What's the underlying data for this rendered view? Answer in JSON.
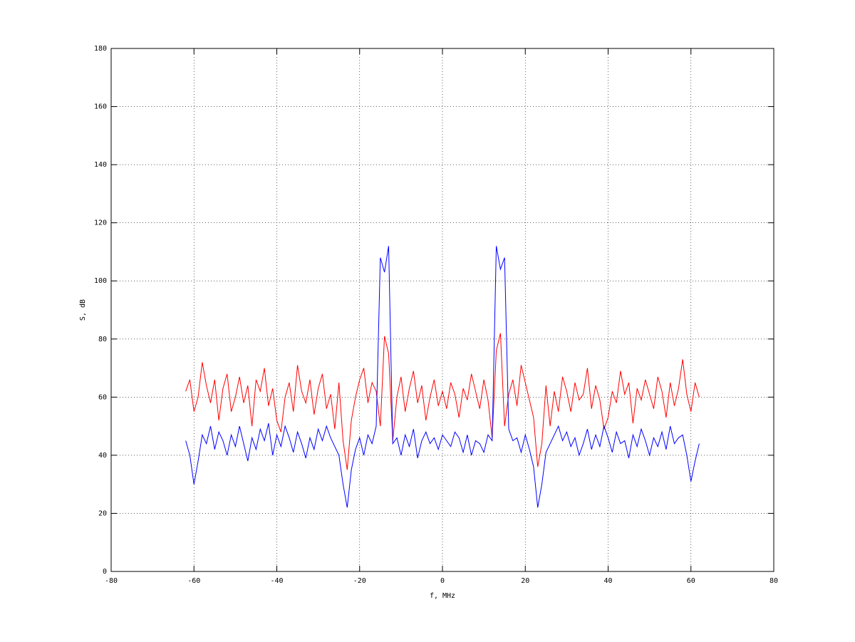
{
  "chart_data": {
    "type": "line",
    "xlabel": "f, MHz",
    "ylabel": "S, dB",
    "x": [
      -62,
      -61,
      -60,
      -59,
      -58,
      -57,
      -56,
      -55,
      -54,
      -53,
      -52,
      -51,
      -50,
      -49,
      -48,
      -47,
      -46,
      -45,
      -44,
      -43,
      -42,
      -41,
      -40,
      -39,
      -38,
      -37,
      -36,
      -35,
      -34,
      -33,
      -32,
      -31,
      -30,
      -29,
      -28,
      -27,
      -26,
      -25,
      -24,
      -23,
      -22,
      -21,
      -20,
      -19,
      -18,
      -17,
      -16,
      -15,
      -14,
      -13,
      -12,
      -11,
      -10,
      -9,
      -8,
      -7,
      -6,
      -5,
      -4,
      -3,
      -2,
      -1,
      0,
      1,
      2,
      3,
      4,
      5,
      6,
      7,
      8,
      9,
      10,
      11,
      12,
      13,
      14,
      15,
      16,
      17,
      18,
      19,
      20,
      21,
      22,
      23,
      24,
      25,
      26,
      27,
      28,
      29,
      30,
      31,
      32,
      33,
      34,
      35,
      36,
      37,
      38,
      39,
      40,
      41,
      42,
      43,
      44,
      45,
      46,
      47,
      48,
      49,
      50,
      51,
      52,
      53,
      54,
      55,
      56,
      57,
      58,
      59,
      60,
      61,
      62
    ],
    "series": [
      {
        "color": "#ff0000",
        "values": [
          62,
          66,
          55,
          60,
          72,
          64,
          58,
          66,
          52,
          63,
          68,
          55,
          60,
          67,
          58,
          64,
          50,
          66,
          62,
          70,
          57,
          63,
          52,
          48,
          60,
          65,
          55,
          71,
          62,
          58,
          66,
          54,
          63,
          68,
          56,
          61,
          49,
          65,
          45,
          35,
          52,
          60,
          66,
          70,
          58,
          65,
          62,
          50,
          81,
          75,
          45,
          60,
          67,
          55,
          63,
          69,
          58,
          64,
          52,
          60,
          66,
          57,
          62,
          56,
          65,
          61,
          53,
          63,
          59,
          68,
          62,
          56,
          66,
          59,
          46,
          76,
          82,
          50,
          61,
          66,
          57,
          71,
          65,
          59,
          53,
          36,
          44,
          64,
          50,
          62,
          55,
          67,
          62,
          55,
          65,
          59,
          61,
          70,
          56,
          64,
          59,
          49,
          53,
          62,
          58,
          69,
          61,
          65,
          51,
          63,
          59,
          66,
          61,
          56,
          67,
          62,
          53,
          65,
          57,
          63,
          73,
          61,
          55,
          65,
          60
        ]
      },
      {
        "color": "#0000ff",
        "values": [
          45,
          40,
          30,
          38,
          47,
          44,
          50,
          42,
          48,
          45,
          40,
          47,
          43,
          50,
          44,
          38,
          46,
          42,
          49,
          45,
          51,
          40,
          47,
          43,
          50,
          46,
          41,
          48,
          44,
          39,
          46,
          42,
          49,
          45,
          50,
          46,
          43,
          40,
          30,
          22,
          35,
          42,
          46,
          40,
          47,
          44,
          50,
          108,
          103,
          112,
          44,
          46,
          40,
          47,
          43,
          49,
          39,
          45,
          48,
          44,
          46,
          42,
          47,
          45,
          43,
          48,
          46,
          41,
          47,
          40,
          45,
          44,
          41,
          47,
          45,
          112,
          104,
          108,
          49,
          45,
          46,
          41,
          47,
          42,
          36,
          22,
          30,
          41,
          44,
          47,
          50,
          45,
          48,
          43,
          46,
          40,
          44,
          49,
          42,
          47,
          43,
          50,
          46,
          41,
          48,
          44,
          45,
          39,
          47,
          43,
          49,
          45,
          40,
          46,
          43,
          48,
          42,
          50,
          44,
          46,
          47,
          40,
          31,
          38,
          44
        ]
      }
    ],
    "xlim": [
      -80,
      80
    ],
    "xticks": [
      -80,
      -60,
      -40,
      -20,
      0,
      20,
      40,
      60,
      80
    ],
    "ylim": [
      0,
      180
    ],
    "yticks": [
      0,
      20,
      40,
      60,
      80,
      100,
      120,
      140,
      160,
      180
    ],
    "grid": true
  }
}
